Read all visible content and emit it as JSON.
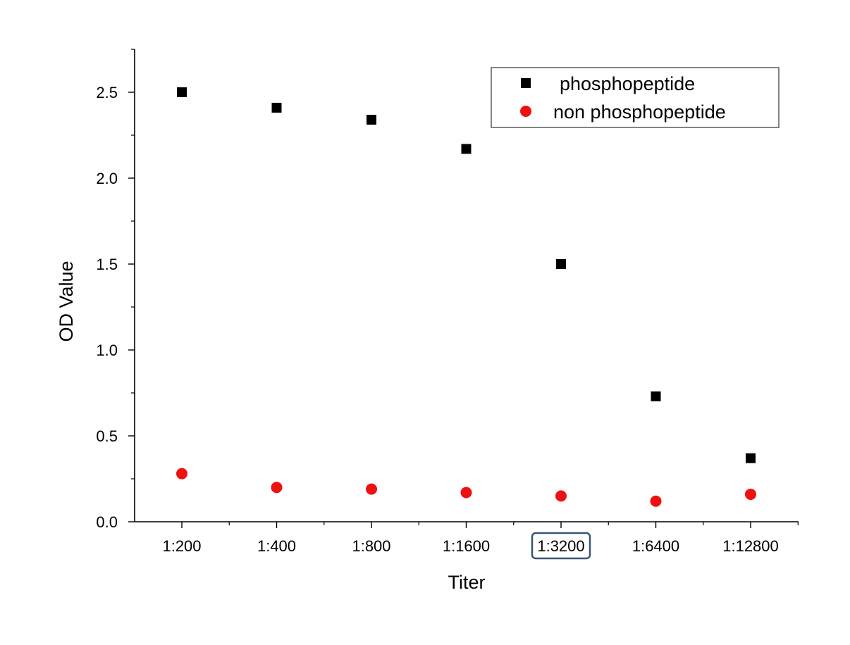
{
  "chart_data": {
    "type": "scatter",
    "xlabel": "Titer",
    "ylabel": "OD Value",
    "categories": [
      "1:200",
      "1:400",
      "1:800",
      "1:1600",
      "1:3200",
      "1:6400",
      "1:12800"
    ],
    "ylim": [
      0,
      2.75
    ],
    "yticks": [
      "0.0",
      "0.5",
      "1.0",
      "1.5",
      "2.0",
      "2.5"
    ],
    "ytick_values": [
      0,
      0.5,
      1.0,
      1.5,
      2.0,
      2.5
    ],
    "highlighted_category": "1:3200",
    "legend_position": "top-right",
    "series": [
      {
        "name": "phosphopeptide",
        "marker": "square",
        "color": "#000000",
        "values": [
          2.5,
          2.41,
          2.34,
          2.17,
          1.5,
          0.73,
          0.37
        ]
      },
      {
        "name": "non phosphopeptide",
        "marker": "circle",
        "color": "#ee1111",
        "values": [
          0.28,
          0.2,
          0.19,
          0.17,
          0.15,
          0.12,
          0.16
        ]
      }
    ],
    "highlight_color": "#3a5573"
  }
}
